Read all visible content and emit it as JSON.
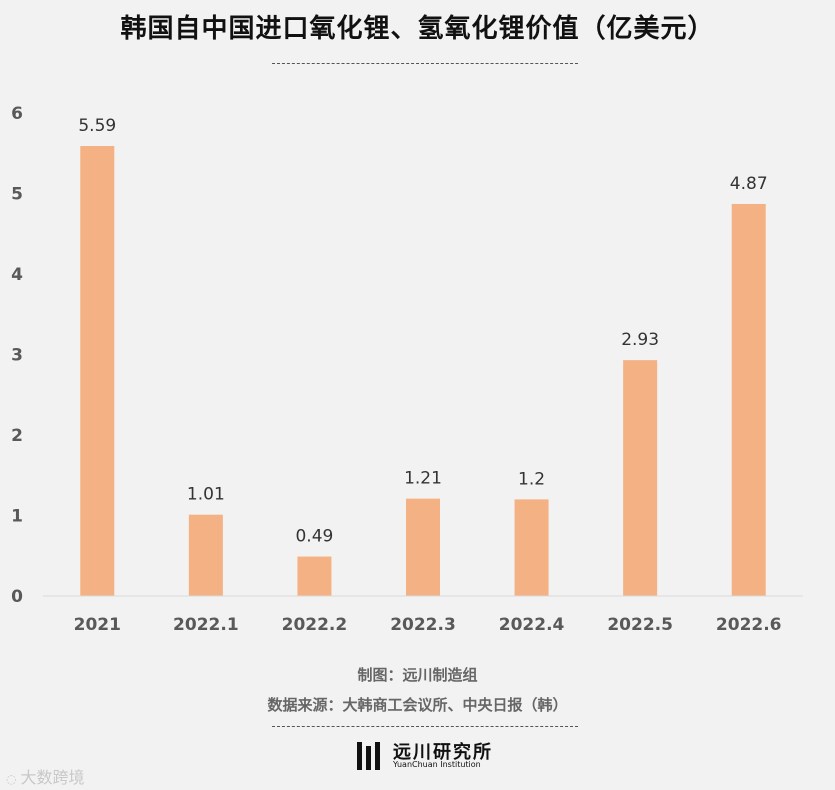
{
  "chart_data": {
    "type": "bar",
    "title": "韩国自中国进口氧化锂、氢氧化锂价值（亿美元）",
    "categories": [
      "2021",
      "2022.1",
      "2022.2",
      "2022.3",
      "2022.4",
      "2022.5",
      "2022.6"
    ],
    "values": [
      5.59,
      1.01,
      0.49,
      1.21,
      1.2,
      2.93,
      4.87
    ],
    "value_labels": [
      "5.59",
      "1.01",
      "0.49",
      "1.21",
      "1.2",
      "2.93",
      "4.87"
    ],
    "ylim": [
      0,
      6
    ],
    "yticks": [
      0,
      1,
      2,
      3,
      4,
      5,
      6
    ],
    "xlabel": "",
    "ylabel": "",
    "grid": false,
    "bar_color": "#f4b183"
  },
  "footer": {
    "maker": "制图：远川制造组",
    "source": "数据来源：大韩商工会议所、中央日报（韩）"
  },
  "logo": {
    "name": "远川研究所",
    "sub": "YuanChuan Institution"
  },
  "watermark": {
    "text": "大数跨境"
  },
  "colors": {
    "background": "#f2f2f2",
    "bar": "#f4b183",
    "axis": "#d9d9d9"
  }
}
